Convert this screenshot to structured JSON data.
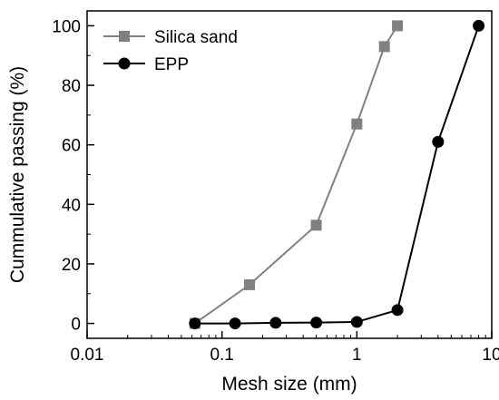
{
  "chart_data": {
    "type": "line",
    "xscale": "log",
    "xlim": [
      0.01,
      10
    ],
    "ylim": [
      -5,
      105
    ],
    "x_ticks": [
      {
        "value": 0.01,
        "label": "0.01"
      },
      {
        "value": 0.1,
        "label": "0.1"
      },
      {
        "value": 1,
        "label": "1"
      },
      {
        "value": 10,
        "label": "10"
      }
    ],
    "y_ticks": [
      {
        "value": 0,
        "label": "0"
      },
      {
        "value": 20,
        "label": "20"
      },
      {
        "value": 40,
        "label": "40"
      },
      {
        "value": 60,
        "label": "60"
      },
      {
        "value": 80,
        "label": "80"
      },
      {
        "value": 100,
        "label": "100"
      }
    ],
    "xlabel": "Mesh size (mm)",
    "ylabel": "Cummulative passing (%)",
    "legend_position": "top-left",
    "grid": false,
    "series": [
      {
        "name": "Silica sand",
        "color": "#808080",
        "marker": "square",
        "x": [
          0.063,
          0.16,
          0.5,
          1,
          1.6,
          2
        ],
        "y": [
          0,
          13,
          33,
          67,
          93,
          100
        ]
      },
      {
        "name": "EPP",
        "color": "#000000",
        "marker": "circle",
        "x": [
          0.063,
          0.125,
          0.25,
          0.5,
          1,
          2,
          4,
          8
        ],
        "y": [
          0,
          0,
          0.2,
          0.3,
          0.5,
          4.5,
          61,
          100
        ]
      }
    ]
  }
}
